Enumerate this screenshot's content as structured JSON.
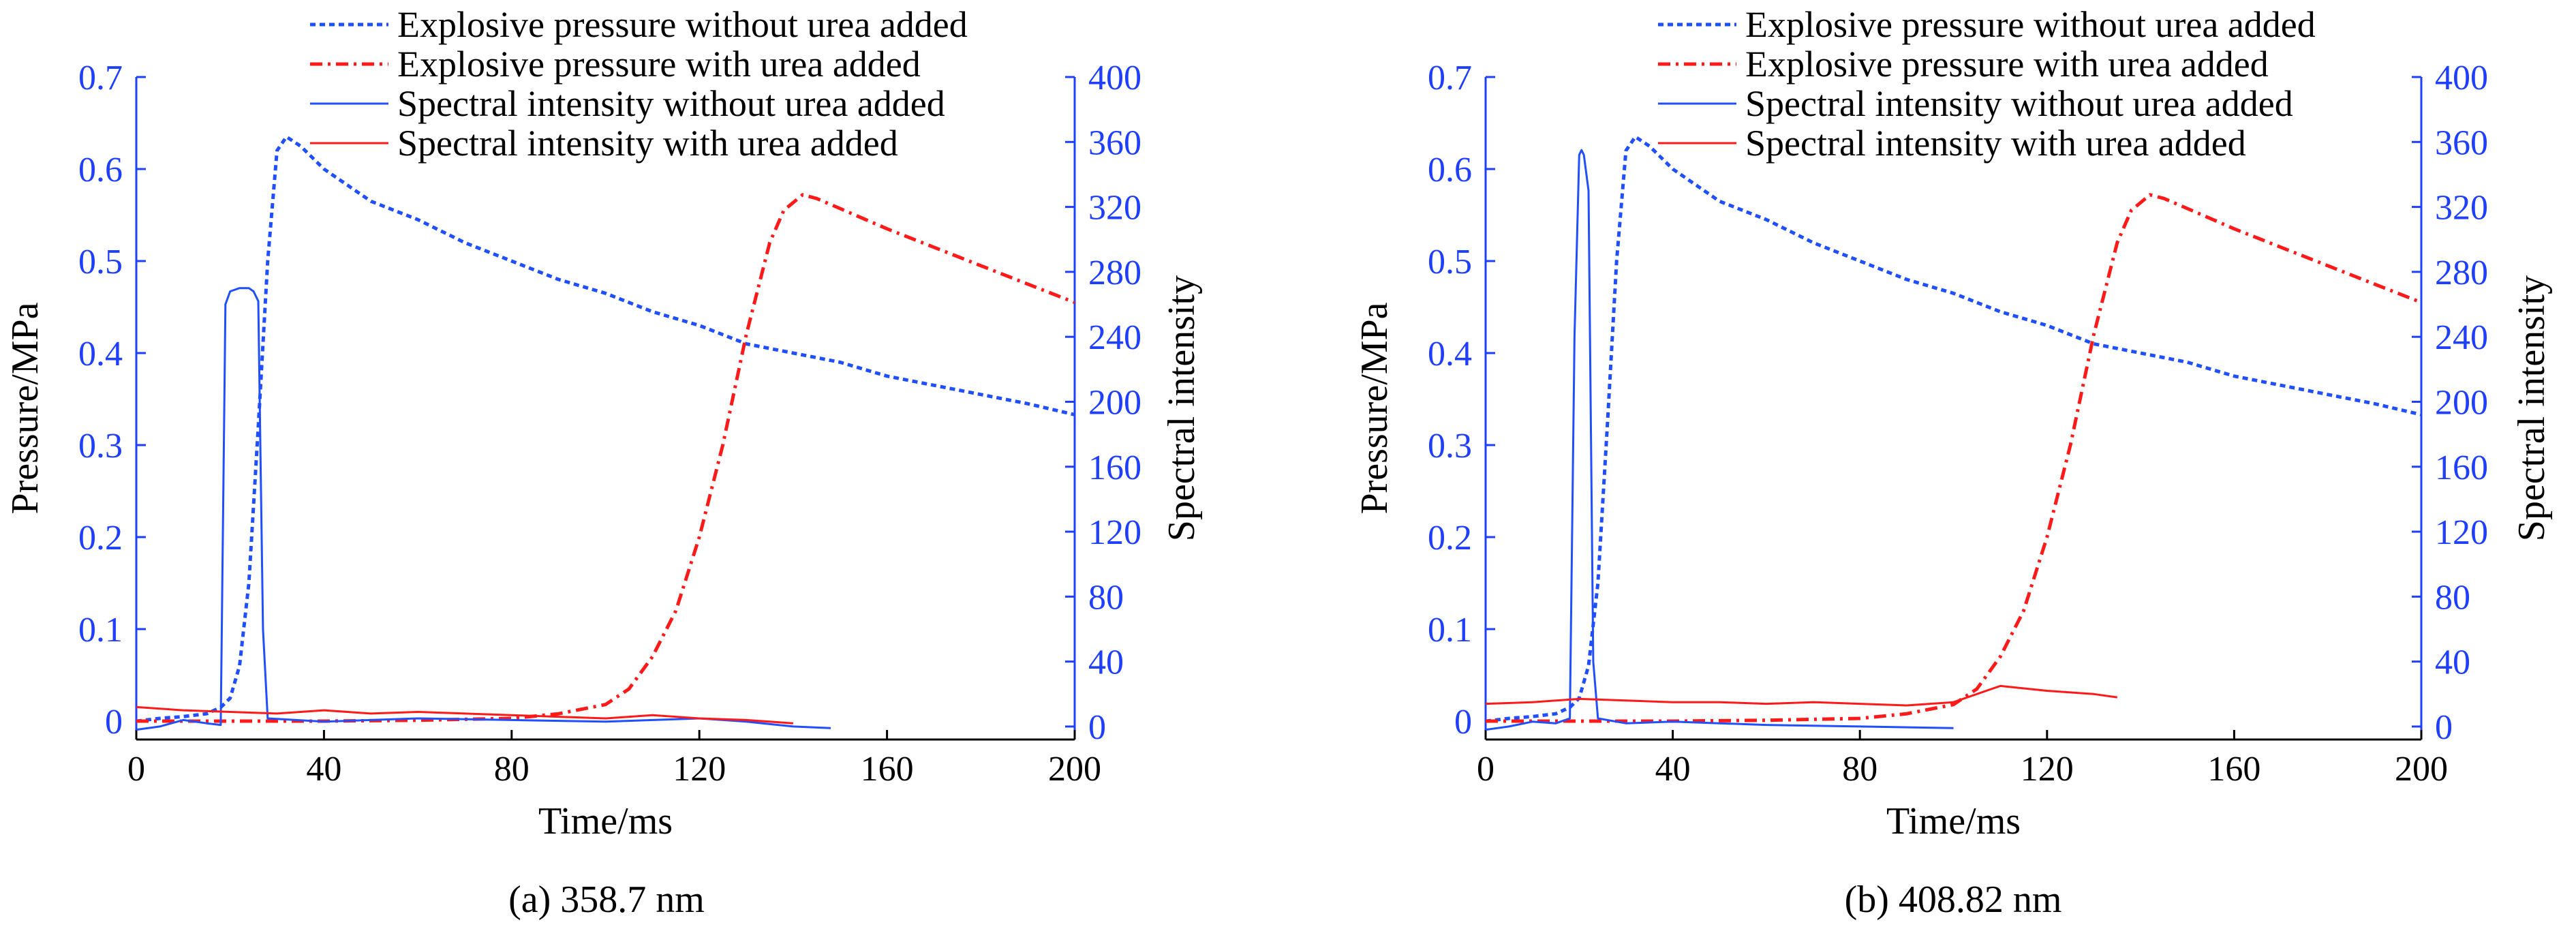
{
  "chart_data": [
    {
      "type": "line",
      "caption": "(a) 358.7 nm",
      "xlabel": "Time/ms",
      "ylabel": "Pressure/MPa",
      "y2label": "Spectral intensity",
      "xlim": [
        0,
        200
      ],
      "ylim": [
        -0.02,
        0.7
      ],
      "y2lim": [
        -8,
        400
      ],
      "xticks": [
        0,
        40,
        80,
        120,
        160,
        200
      ],
      "yticks": [
        0,
        0.1,
        0.2,
        0.3,
        0.4,
        0.5,
        0.6,
        0.7
      ],
      "y2ticks": [
        0,
        40,
        80,
        120,
        160,
        200,
        240,
        280,
        320,
        360,
        400
      ],
      "grid": false,
      "legend_position": "top-center",
      "series": [
        {
          "name": "Explosive pressure without urea added",
          "axis": "left",
          "color": "#1f4fff",
          "style": "dotted",
          "x": [
            0,
            5,
            10,
            15,
            18,
            20,
            22,
            24,
            26,
            28,
            30,
            32,
            35,
            40,
            50,
            60,
            70,
            80,
            90,
            100,
            110,
            120,
            130,
            140,
            150,
            160,
            170,
            180,
            190,
            200
          ],
          "y": [
            0.0,
            0.003,
            0.005,
            0.008,
            0.015,
            0.025,
            0.06,
            0.15,
            0.32,
            0.5,
            0.62,
            0.635,
            0.625,
            0.6,
            0.565,
            0.545,
            0.52,
            0.5,
            0.48,
            0.465,
            0.445,
            0.43,
            0.41,
            0.4,
            0.39,
            0.375,
            0.365,
            0.355,
            0.345,
            0.333
          ]
        },
        {
          "name": "Explosive pressure with urea added",
          "axis": "left",
          "color": "#ff1a1a",
          "style": "dashdot",
          "x": [
            0,
            10,
            20,
            40,
            60,
            80,
            90,
            100,
            105,
            110,
            115,
            120,
            125,
            130,
            135,
            138,
            142,
            145,
            150,
            160,
            170,
            180,
            190,
            200
          ],
          "y": [
            0.0,
            0.0,
            0.0,
            0.0,
            0.001,
            0.003,
            0.008,
            0.018,
            0.035,
            0.07,
            0.12,
            0.2,
            0.3,
            0.42,
            0.52,
            0.555,
            0.572,
            0.568,
            0.557,
            0.535,
            0.515,
            0.495,
            0.475,
            0.455
          ]
        },
        {
          "name": "Spectral intensity without urea added",
          "axis": "right",
          "color": "#1f4fff",
          "style": "solid",
          "x": [
            0,
            5,
            10,
            15,
            18,
            19,
            20,
            22,
            24,
            25,
            26,
            27,
            28,
            40,
            60,
            80,
            100,
            120,
            130,
            140,
            148
          ],
          "y": [
            -2,
            0,
            4,
            2,
            1,
            260,
            268,
            270,
            270,
            268,
            262,
            60,
            5,
            3,
            5,
            4,
            3,
            5,
            3,
            0,
            -1
          ]
        },
        {
          "name": "Spectral intensity with urea added",
          "axis": "right",
          "color": "#ff1a1a",
          "style": "solid",
          "x": [
            0,
            10,
            20,
            30,
            40,
            50,
            60,
            70,
            80,
            90,
            100,
            110,
            120,
            130,
            140
          ],
          "y": [
            12,
            10,
            9,
            8,
            10,
            8,
            9,
            8,
            7,
            6,
            5,
            7,
            5,
            4,
            2
          ]
        }
      ]
    },
    {
      "type": "line",
      "caption": "(b) 408.82 nm",
      "xlabel": "Time/ms",
      "ylabel": "Pressure/MPa",
      "y2label": "Spectral intensity",
      "xlim": [
        0,
        200
      ],
      "ylim": [
        -0.02,
        0.7
      ],
      "y2lim": [
        -8,
        400
      ],
      "xticks": [
        0,
        40,
        80,
        120,
        160,
        200
      ],
      "yticks": [
        0,
        0.1,
        0.2,
        0.3,
        0.4,
        0.5,
        0.6,
        0.7
      ],
      "y2ticks": [
        0,
        40,
        80,
        120,
        160,
        200,
        240,
        280,
        320,
        360,
        400
      ],
      "grid": false,
      "legend_position": "top-center",
      "series": [
        {
          "name": "Explosive pressure without urea added",
          "axis": "left",
          "color": "#1f4fff",
          "style": "dotted",
          "x": [
            0,
            5,
            10,
            15,
            18,
            20,
            22,
            24,
            26,
            28,
            30,
            32,
            35,
            40,
            50,
            60,
            70,
            80,
            90,
            100,
            110,
            120,
            130,
            140,
            150,
            160,
            170,
            180,
            190,
            200
          ],
          "y": [
            0.0,
            0.003,
            0.005,
            0.008,
            0.015,
            0.025,
            0.06,
            0.15,
            0.32,
            0.5,
            0.62,
            0.635,
            0.625,
            0.6,
            0.565,
            0.545,
            0.52,
            0.5,
            0.48,
            0.465,
            0.445,
            0.43,
            0.41,
            0.4,
            0.39,
            0.375,
            0.365,
            0.355,
            0.345,
            0.333
          ]
        },
        {
          "name": "Explosive pressure with urea added",
          "axis": "left",
          "color": "#ff1a1a",
          "style": "dashdot",
          "x": [
            0,
            10,
            20,
            40,
            60,
            80,
            90,
            100,
            105,
            110,
            115,
            120,
            125,
            130,
            135,
            138,
            142,
            145,
            150,
            160,
            170,
            180,
            190,
            200
          ],
          "y": [
            0.0,
            0.0,
            0.0,
            0.0,
            0.001,
            0.003,
            0.008,
            0.018,
            0.035,
            0.07,
            0.12,
            0.2,
            0.3,
            0.42,
            0.52,
            0.555,
            0.572,
            0.568,
            0.557,
            0.535,
            0.515,
            0.495,
            0.475,
            0.455
          ]
        },
        {
          "name": "Spectral intensity without urea added",
          "axis": "right",
          "color": "#1f4fff",
          "style": "solid",
          "x": [
            0,
            5,
            10,
            15,
            18,
            19,
            20,
            20.5,
            21,
            22,
            23,
            24,
            30,
            40,
            60,
            80,
            100
          ],
          "y": [
            -2,
            0,
            3,
            2,
            5,
            240,
            352,
            355,
            352,
            330,
            40,
            5,
            2,
            3,
            1,
            0,
            -1
          ]
        },
        {
          "name": "Spectral intensity with urea added",
          "axis": "right",
          "color": "#ff1a1a",
          "style": "solid",
          "x": [
            0,
            10,
            20,
            30,
            40,
            50,
            60,
            70,
            80,
            90,
            100,
            110,
            120,
            130,
            135
          ],
          "y": [
            14,
            15,
            17,
            16,
            15,
            15,
            14,
            15,
            14,
            13,
            15,
            25,
            22,
            20,
            18
          ]
        }
      ]
    }
  ]
}
